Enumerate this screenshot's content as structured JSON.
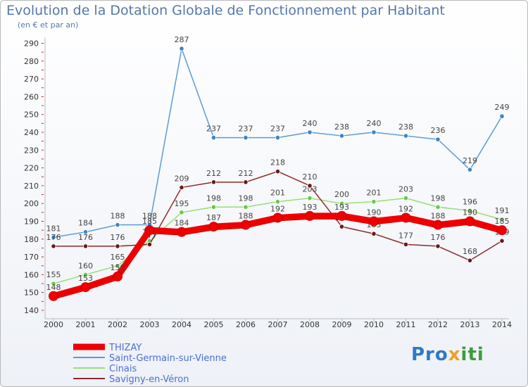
{
  "chart_data": {
    "type": "line",
    "title": "Evolution de la Dotation Globale de Fonctionnement par Habitant",
    "subtitle": "(en € et par an)",
    "categories": [
      "2000",
      "2001",
      "2002",
      "2003",
      "2004",
      "2005",
      "2006",
      "2007",
      "2008",
      "2009",
      "2010",
      "2011",
      "2012",
      "2013",
      "2014"
    ],
    "ylim": [
      140,
      290
    ],
    "yticks": [
      140,
      150,
      160,
      170,
      180,
      190,
      200,
      210,
      220,
      230,
      240,
      250,
      260,
      270,
      280,
      290
    ],
    "grid": false,
    "legend_position": "bottom-left",
    "series": [
      {
        "name": "Saint-Germain-sur-Vienne",
        "color": "#5b9bd5",
        "point_color": "#3a84c8",
        "values": [
          181,
          184,
          188,
          188,
          287,
          237,
          237,
          237,
          240,
          238,
          240,
          238,
          236,
          219,
          249
        ]
      },
      {
        "name": "Cinais",
        "color": "#99dd77",
        "point_color": "#66cc44",
        "values": [
          155,
          160,
          165,
          179,
          195,
          198,
          198,
          201,
          203,
          200,
          201,
          203,
          198,
          196,
          191
        ]
      },
      {
        "name": "Savigny-en-Véron",
        "color": "#8b2a2a",
        "point_color": "#6b1a1a",
        "values": [
          176,
          176,
          176,
          177,
          209,
          212,
          212,
          218,
          210,
          187,
          183,
          177,
          176,
          168,
          179
        ]
      },
      {
        "name": "THIZAY",
        "color": "#ee0000",
        "point_color": "#ee0000",
        "values": [
          148,
          153,
          159,
          185,
          184,
          187,
          188,
          192,
          193,
          193,
          190,
          192,
          188,
          190,
          185
        ]
      }
    ],
    "legend_order": [
      "THIZAY",
      "Saint-Germain-sur-Vienne",
      "Cinais",
      "Savigny-en-Véron"
    ]
  },
  "logo": {
    "part1": "Pro",
    "part2": "x",
    "part3": "iti"
  }
}
